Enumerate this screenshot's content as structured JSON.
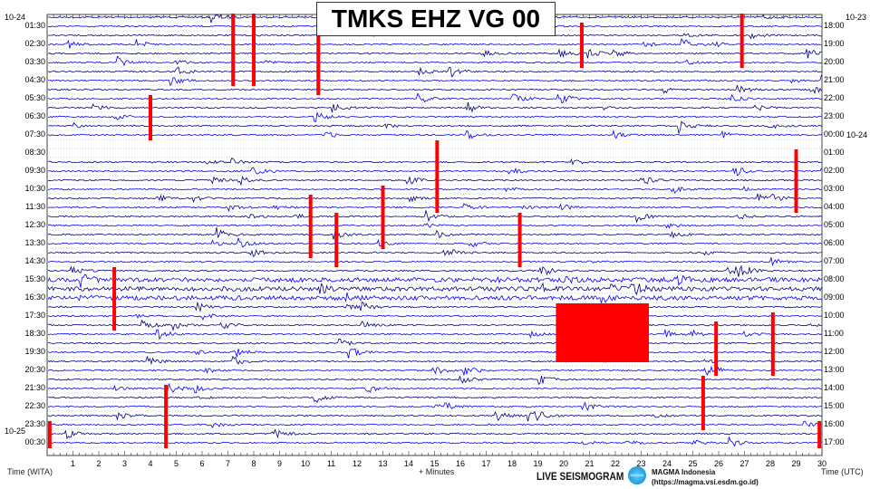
{
  "title": "TMKS EHZ VG 00",
  "chart_data": {
    "type": "line",
    "title": "TMKS EHZ VG 00",
    "xlabel": "+ Minutes",
    "xlim": [
      0,
      30
    ],
    "x_ticks": [
      "1",
      "2",
      "3",
      "4",
      "5",
      "6",
      "7",
      "8",
      "9",
      "10",
      "11",
      "12",
      "13",
      "14",
      "15",
      "16",
      "17",
      "18",
      "19",
      "20",
      "21",
      "22",
      "23",
      "24",
      "25",
      "26",
      "27",
      "28",
      "29",
      "30"
    ],
    "left_axis_label": "Time (WITA)",
    "right_axis_label": "Time (UTC)",
    "left_dates": {
      "top": "10-24",
      "bottom": "10-25"
    },
    "right_dates": {
      "top": "10-23",
      "mid": "10-24"
    },
    "left_ticks": [
      "01:30",
      "02:30",
      "03:30",
      "04:30",
      "05:30",
      "06:30",
      "07:30",
      "08:30",
      "09:30",
      "10:30",
      "11:30",
      "12:30",
      "13:30",
      "14:30",
      "15:30",
      "16:30",
      "17:30",
      "18:30",
      "19:30",
      "20:30",
      "21:30",
      "22:30",
      "23:30",
      "00:30"
    ],
    "right_ticks": [
      "18:00",
      "19:00",
      "20:00",
      "21:00",
      "22:00",
      "23:00",
      "00:00",
      "01:00",
      "02:00",
      "03:00",
      "04:00",
      "05:00",
      "06:00",
      "07:00",
      "08:00",
      "09:00",
      "10:00",
      "11:00",
      "12:00",
      "13:00",
      "14:00",
      "15:00",
      "16:00",
      "17:00"
    ],
    "trace_colors": [
      "#000080",
      "#0000ff"
    ],
    "clip_color": "#ff0000",
    "grid": true
  },
  "footer": {
    "live": "LIVE SEISMOGRAM",
    "logo_text": "MAGMA",
    "org_name": "MAGMA Indonesia",
    "org_url": "(https://magma.vsi.esdm.go.id)"
  }
}
